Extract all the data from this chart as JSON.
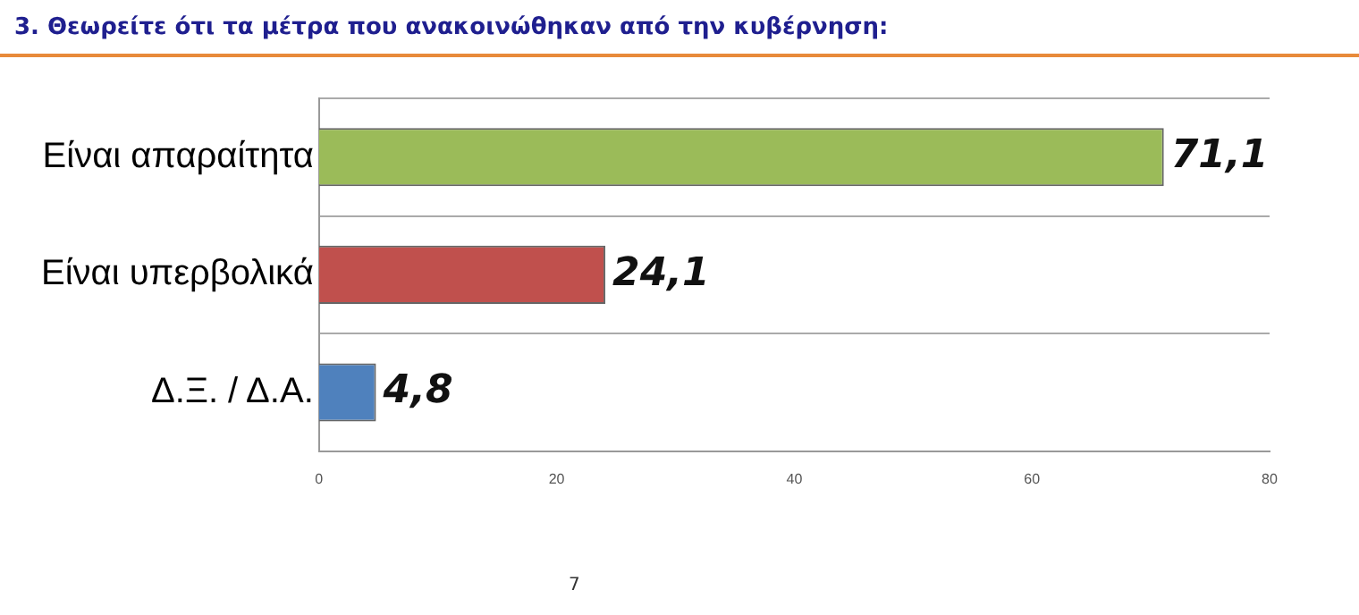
{
  "chart_data": {
    "type": "bar",
    "orientation": "horizontal",
    "title": "3. Θεωρείτε ότι τα μέτρα που ανακοινώθηκαν από την κυβέρνηση:",
    "categories": [
      "Είναι απαραίτητα",
      "Είναι υπερβολικά",
      "Δ.Ξ. / Δ.Α."
    ],
    "values": [
      71.1,
      24.1,
      4.8
    ],
    "colors": [
      "#9bbb59",
      "#c0504d",
      "#4f81bd"
    ],
    "value_labels": [
      "71,1",
      "24,1",
      "4,8"
    ],
    "xlim": [
      0,
      80
    ],
    "xticks": [
      0,
      20,
      40,
      60,
      80
    ],
    "grid": "y",
    "legend": false,
    "annotations": [
      "7"
    ]
  }
}
